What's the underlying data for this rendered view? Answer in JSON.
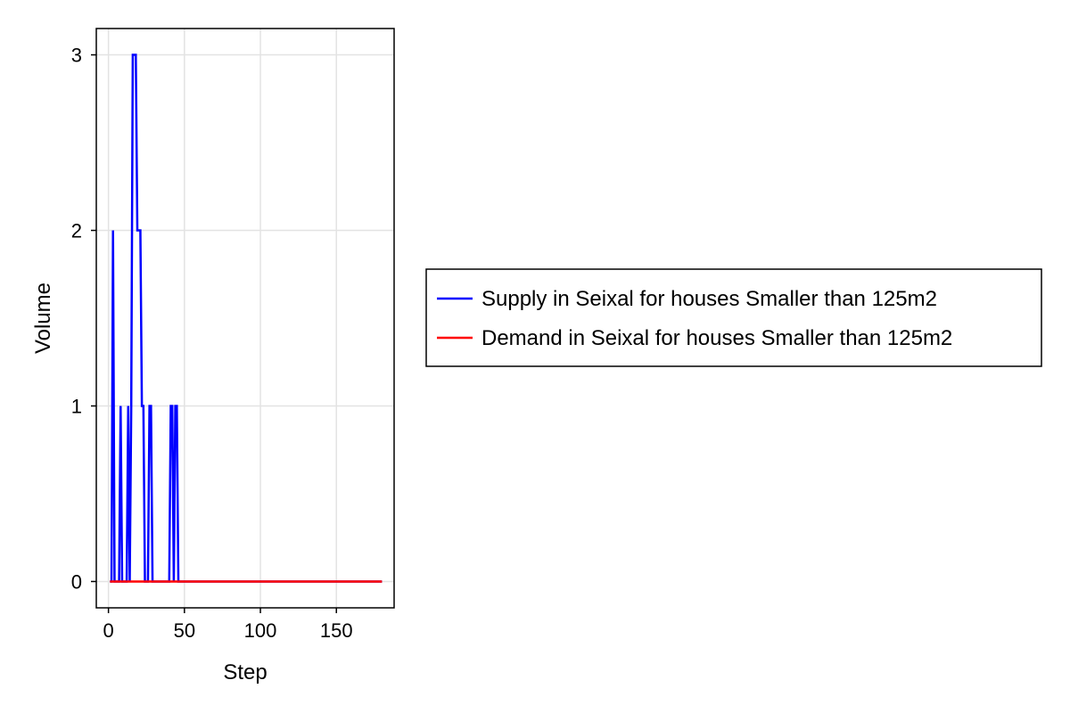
{
  "chart_data": {
    "type": "line",
    "title": "",
    "xlabel": "Step",
    "ylabel": "Volume",
    "xlim": [
      -8,
      188
    ],
    "ylim": [
      -0.15,
      3.15
    ],
    "xticks": [
      0,
      50,
      100,
      150
    ],
    "yticks": [
      0,
      1,
      2,
      3
    ],
    "xtick_labels": [
      "0",
      "50",
      "100",
      "150"
    ],
    "ytick_labels": [
      "0",
      "1",
      "2",
      "3"
    ],
    "grid": true,
    "legend_position": "right",
    "series": [
      {
        "name": "Supply in Seixal for houses Smaller than 125m2",
        "color": "#0000ff",
        "x": [
          1,
          2,
          3,
          4,
          5,
          6,
          7,
          8,
          9,
          10,
          11,
          12,
          13,
          14,
          15,
          16,
          17,
          18,
          19,
          20,
          21,
          22,
          23,
          24,
          25,
          26,
          27,
          28,
          29,
          30,
          31,
          32,
          33,
          34,
          35,
          36,
          37,
          38,
          39,
          40,
          41,
          42,
          43,
          44,
          45,
          46,
          47,
          48,
          49,
          50,
          60,
          80,
          100,
          120,
          140,
          160,
          180
        ],
        "y": [
          0,
          0,
          2,
          0,
          0,
          0,
          0,
          1,
          0,
          0,
          0,
          0,
          1,
          0,
          1,
          3,
          3,
          3,
          2,
          2,
          2,
          1,
          1,
          0,
          0,
          0,
          1,
          1,
          0,
          0,
          0,
          0,
          0,
          0,
          0,
          0,
          0,
          0,
          0,
          0,
          1,
          1,
          0,
          1,
          1,
          0,
          0,
          0,
          0,
          0,
          0,
          0,
          0,
          0,
          0,
          0,
          0
        ]
      },
      {
        "name": "Demand in Seixal for houses Smaller than 125m2",
        "color": "#ff0000",
        "x": [
          1,
          180
        ],
        "y": [
          0,
          0
        ]
      }
    ]
  }
}
